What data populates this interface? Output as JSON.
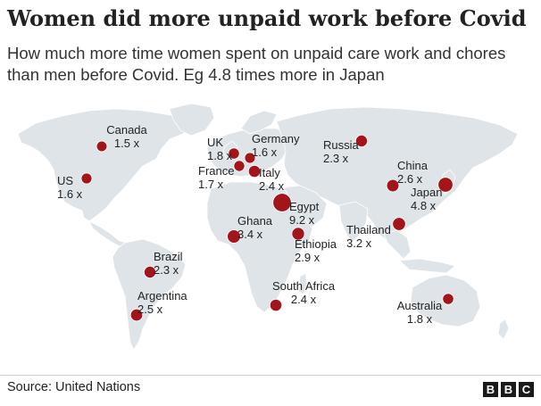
{
  "title": "Women did more unpaid work before Covid",
  "subtitle": "How much more time women spent on unpaid care work and chores than men before Covid. Eg 4.8 times more in Japan",
  "source": "Source: United Nations",
  "logo": {
    "letters": [
      "B",
      "B",
      "C"
    ]
  },
  "colors": {
    "land": "#dfe4e8",
    "marker": "#a1151b",
    "text": "#222222"
  },
  "countries": [
    {
      "name": "Canada",
      "value": "1.5 x",
      "ratio": 1.5
    },
    {
      "name": "US",
      "value": "1.6 x",
      "ratio": 1.6
    },
    {
      "name": "UK",
      "value": "1.8 x",
      "ratio": 1.8
    },
    {
      "name": "Germany",
      "value": "1.6 x",
      "ratio": 1.6
    },
    {
      "name": "France",
      "value": "1.7 x",
      "ratio": 1.7
    },
    {
      "name": "Italy",
      "value": "2.4 x",
      "ratio": 2.4
    },
    {
      "name": "Russia",
      "value": "2.3 x",
      "ratio": 2.3
    },
    {
      "name": "China",
      "value": "2.6 x",
      "ratio": 2.6
    },
    {
      "name": "Japan",
      "value": "4.8 x",
      "ratio": 4.8
    },
    {
      "name": "Egypt",
      "value": "9.2 x",
      "ratio": 9.2
    },
    {
      "name": "Ghana",
      "value": "3.4 x",
      "ratio": 3.4
    },
    {
      "name": "Ethiopia",
      "value": "2.9 x",
      "ratio": 2.9
    },
    {
      "name": "Thailand",
      "value": "3.2 x",
      "ratio": 3.2
    },
    {
      "name": "Brazil",
      "value": "2.3 x",
      "ratio": 2.3
    },
    {
      "name": "Argentina",
      "value": "2.5 x",
      "ratio": 2.5
    },
    {
      "name": "South Africa",
      "value": "2.4 x",
      "ratio": 2.4
    },
    {
      "name": "Australia",
      "value": "1.8 x",
      "ratio": 1.8
    }
  ]
}
